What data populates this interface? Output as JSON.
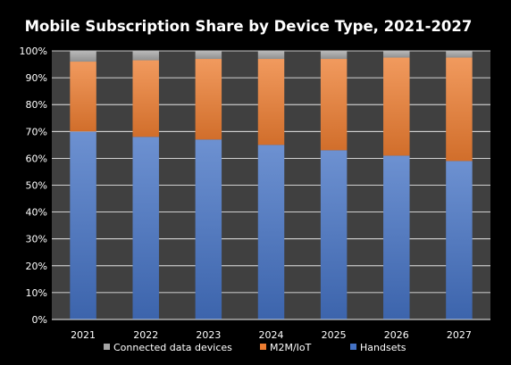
{
  "chart_data": {
    "type": "bar",
    "stacked": true,
    "title": "Mobile Subscription Share by Device Type, 2021-2027",
    "xlabel": "",
    "ylabel": "",
    "categories": [
      "2021",
      "2022",
      "2023",
      "2024",
      "2025",
      "2026",
      "2027"
    ],
    "ylim": [
      0,
      100
    ],
    "y_tick_values": [
      0,
      10,
      20,
      30,
      40,
      50,
      60,
      70,
      80,
      90,
      100
    ],
    "y_tick_labels": [
      "0%",
      "10%",
      "20%",
      "30%",
      "40%",
      "50%",
      "60%",
      "70%",
      "80%",
      "90%",
      "100%"
    ],
    "grid": true,
    "legend_position": "bottom",
    "series": [
      {
        "name": "Handsets",
        "color": "#4472c4",
        "values": [
          70,
          68,
          67,
          65,
          63,
          61,
          59
        ]
      },
      {
        "name": "M2M/IoT",
        "color": "#ed7d31",
        "values": [
          26,
          28.5,
          30,
          32,
          34,
          36.5,
          38.5
        ]
      },
      {
        "name": "Connected data devices",
        "color": "#a5a5a5",
        "values": [
          4,
          3.5,
          3,
          3,
          3,
          2.5,
          2.5
        ]
      }
    ],
    "legend_order": [
      "Connected data devices",
      "M2M/IoT",
      "Handsets"
    ],
    "colors": {
      "background": "#000000",
      "plot_background": "#404040",
      "gridline": "#ffffff",
      "text": "#ffffff"
    }
  }
}
